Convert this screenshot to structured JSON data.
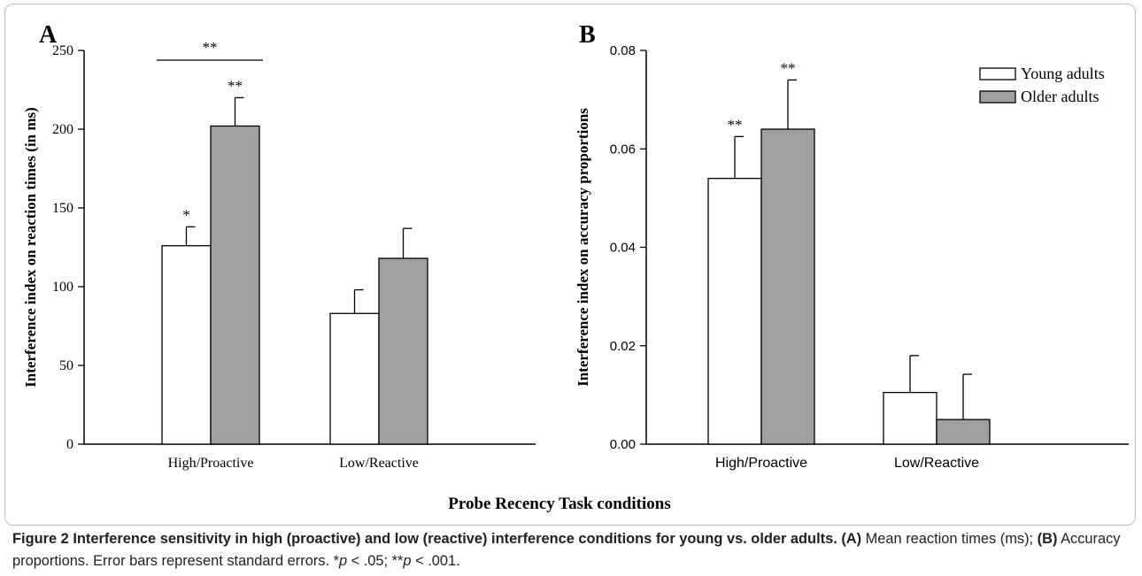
{
  "chart_data": [
    {
      "type": "bar",
      "panel_label": "A",
      "ylabel": "Interference index on reaction times (in ms)",
      "ylim": [
        0,
        250
      ],
      "yticks": [
        "0",
        "50",
        "100",
        "150",
        "200",
        "250"
      ],
      "categories": [
        "High/Proactive",
        "Low/Reactive"
      ],
      "series": [
        {
          "name": "Young adults",
          "values": [
            126,
            83
          ],
          "errors": [
            12,
            15
          ],
          "markers": [
            "*",
            ""
          ]
        },
        {
          "name": "Older adults",
          "values": [
            202,
            118
          ],
          "errors": [
            18,
            19
          ],
          "markers": [
            "**",
            ""
          ]
        }
      ],
      "comparison": {
        "label": "**"
      },
      "grid": false
    },
    {
      "type": "bar",
      "panel_label": "B",
      "ylabel": "Interference index on accuracy proportions",
      "ylim": [
        0,
        0.08
      ],
      "yticks": [
        "0.00",
        "0.02",
        "0.04",
        "0.06",
        "0.08"
      ],
      "categories": [
        "High/Proactive",
        "Low/Reactive"
      ],
      "series": [
        {
          "name": "Young adults",
          "values": [
            0.054,
            0.0105
          ],
          "errors": [
            0.0085,
            0.0075
          ],
          "markers": [
            "**",
            ""
          ]
        },
        {
          "name": "Older adults",
          "values": [
            0.064,
            0.005
          ],
          "errors": [
            0.01,
            0.0092
          ],
          "markers": [
            "**",
            ""
          ]
        }
      ],
      "legend_position": "top-right",
      "grid": false
    }
  ],
  "shared_xlabel": "Probe Recency Task conditions",
  "colors": {
    "young": "#ffffff",
    "older": "#a0a0a0",
    "axis": "#000000"
  },
  "caption": {
    "figure_label": "Figure 2",
    "title": "Interference sensitivity in high (proactive) and low (reactive) interference conditions for young vs. older adults.",
    "label_a": "(A)",
    "text_a": "Mean reaction times (ms);",
    "label_b": "(B)",
    "text_b": "Accuracy proportions. Error bars represent standard errors. *",
    "p_symbol": "p",
    "text_p1": " < .05; **",
    "text_p2": " < .001."
  }
}
